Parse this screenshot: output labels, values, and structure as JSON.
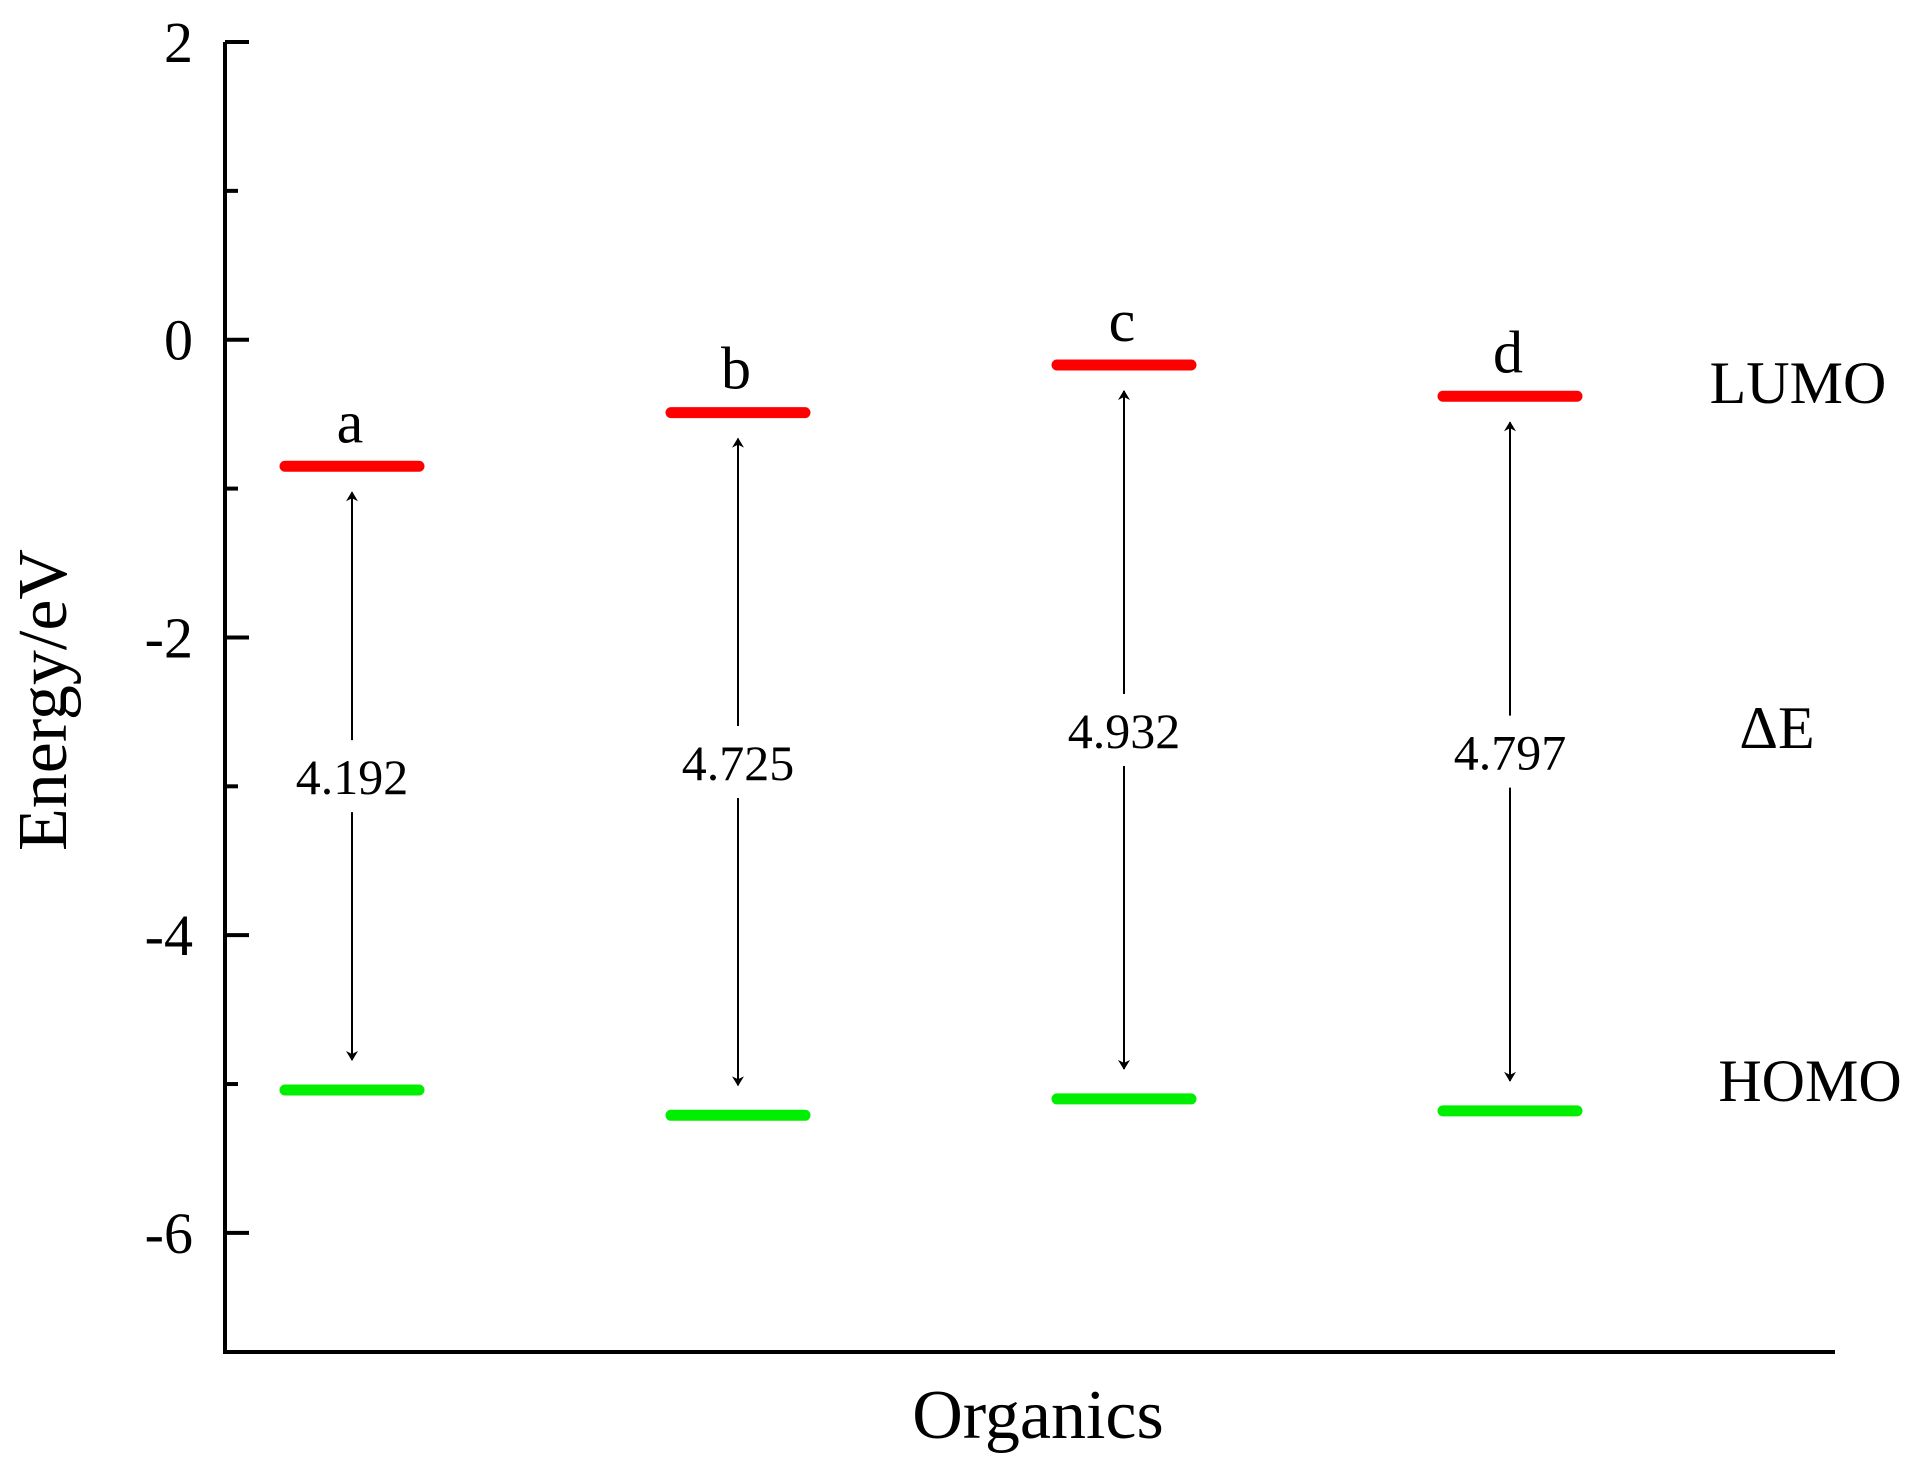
{
  "chart_data": {
    "type": "energy-level",
    "xlabel": "Organics",
    "ylabel": "Energy/eV",
    "ylim": [
      -6.8,
      2
    ],
    "yticks_major": [
      2,
      0,
      -2,
      -4,
      -6
    ],
    "ytick_labels": [
      "2",
      "0",
      "-2",
      "-4",
      "-6"
    ],
    "yticks_minor": [
      1,
      -1,
      -3,
      -5
    ],
    "categories": [
      "a",
      "b",
      "c",
      "d"
    ],
    "series": [
      {
        "name": "LUMO",
        "values": [
          -0.85,
          -0.49,
          -0.17,
          -0.38
        ]
      },
      {
        "name": "HOMO",
        "values": [
          -5.04,
          -5.21,
          -5.1,
          -5.18
        ]
      }
    ],
    "gaps": [
      "4.192",
      "4.725",
      "4.932",
      "4.797"
    ],
    "side_labels": {
      "lumo": "LUMO",
      "gap": "ΔE",
      "homo": "HOMO"
    },
    "colors": {
      "lumo": "#ff0000",
      "homo": "#00ee00",
      "axis": "#000000"
    }
  }
}
